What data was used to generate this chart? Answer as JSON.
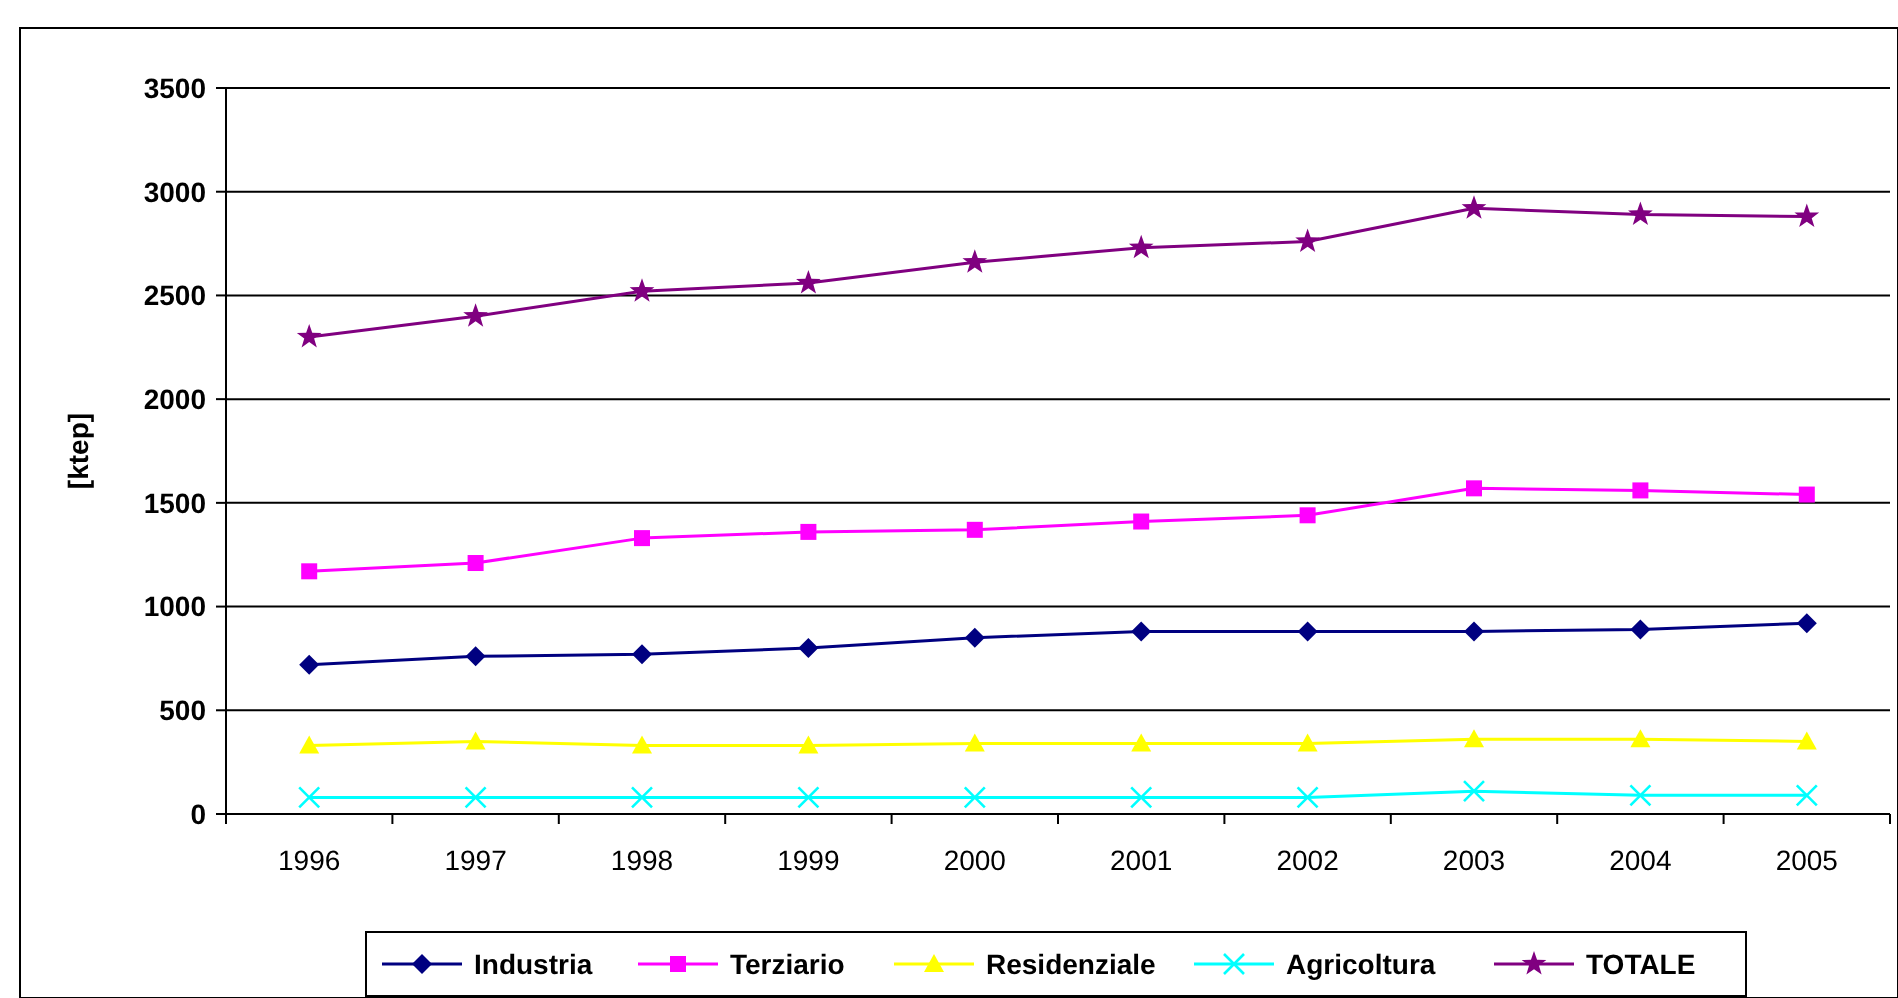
{
  "chart_data": {
    "type": "line",
    "ylabel": "[ktep]",
    "categories": [
      "1996",
      "1997",
      "1998",
      "1999",
      "2000",
      "2001",
      "2002",
      "2003",
      "2004",
      "2005"
    ],
    "series": [
      {
        "name": "Industria",
        "color": "#000080",
        "marker": "diamond",
        "values": [
          720,
          760,
          770,
          800,
          850,
          880,
          880,
          880,
          890,
          920
        ]
      },
      {
        "name": "Terziario",
        "color": "#ff00ff",
        "marker": "square",
        "values": [
          1170,
          1210,
          1330,
          1360,
          1370,
          1410,
          1440,
          1570,
          1560,
          1540
        ]
      },
      {
        "name": "Residenziale",
        "color": "#ffff00",
        "marker": "triangle",
        "values": [
          330,
          350,
          330,
          330,
          340,
          340,
          340,
          360,
          360,
          350
        ]
      },
      {
        "name": "Agricoltura",
        "color": "#00ffff",
        "marker": "cross",
        "values": [
          80,
          80,
          80,
          80,
          80,
          80,
          80,
          110,
          90,
          90
        ]
      },
      {
        "name": "TOTALE",
        "color": "#800080",
        "marker": "star",
        "values": [
          2300,
          2400,
          2520,
          2560,
          2660,
          2730,
          2760,
          2920,
          2890,
          2880
        ]
      }
    ],
    "ylim": [
      0,
      3500
    ],
    "yticks": [
      0,
      500,
      1000,
      1500,
      2000,
      2500,
      3000,
      3500
    ],
    "grid": "y",
    "legend": "bottom"
  }
}
